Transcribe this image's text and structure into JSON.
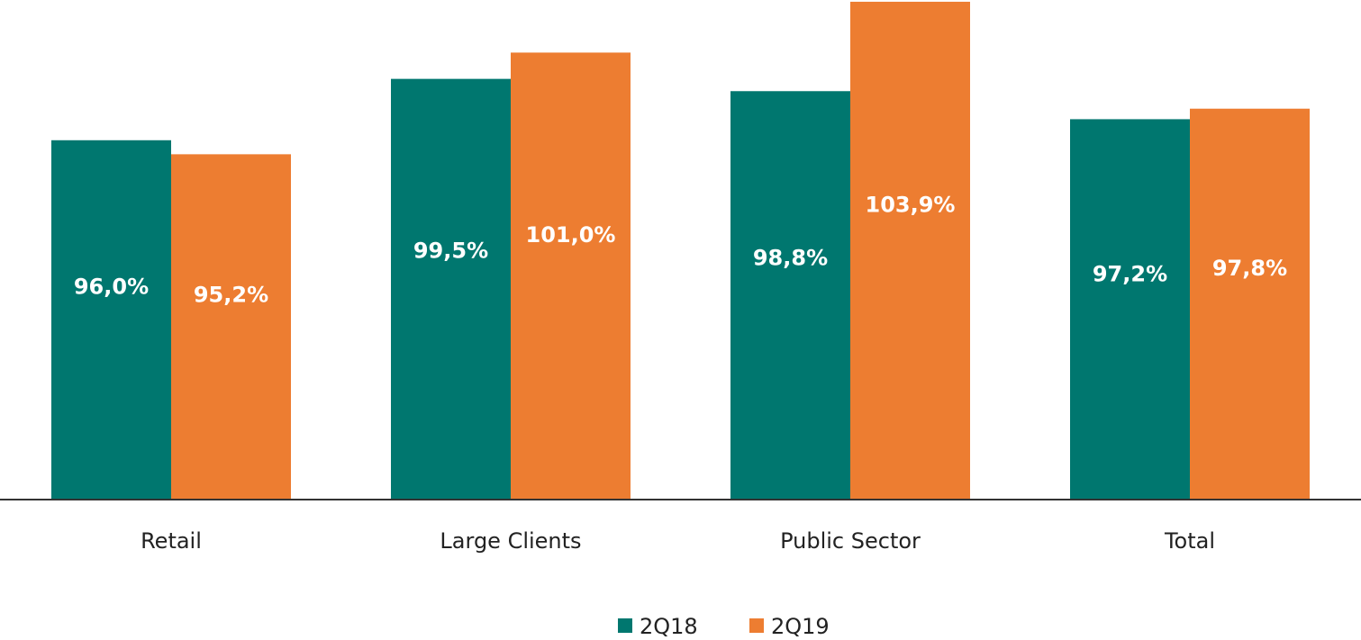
{
  "chart_data": {
    "type": "bar",
    "categories": [
      "Retail",
      "Large Clients",
      "Public Sector",
      "Total"
    ],
    "series": [
      {
        "name": "2Q18",
        "color": "#00776f",
        "values": [
          96.0,
          99.5,
          98.8,
          97.2
        ],
        "value_labels": [
          "96,0%",
          "99,5%",
          "98,8%",
          "97,2%"
        ]
      },
      {
        "name": "2Q19",
        "color": "#ed7d31",
        "values": [
          95.2,
          101.0,
          103.9,
          97.8
        ],
        "value_labels": [
          "95,2%",
          "101,0%",
          "103,9%",
          "97,8%"
        ]
      }
    ],
    "ylim": [
      75.5,
      104
    ]
  }
}
